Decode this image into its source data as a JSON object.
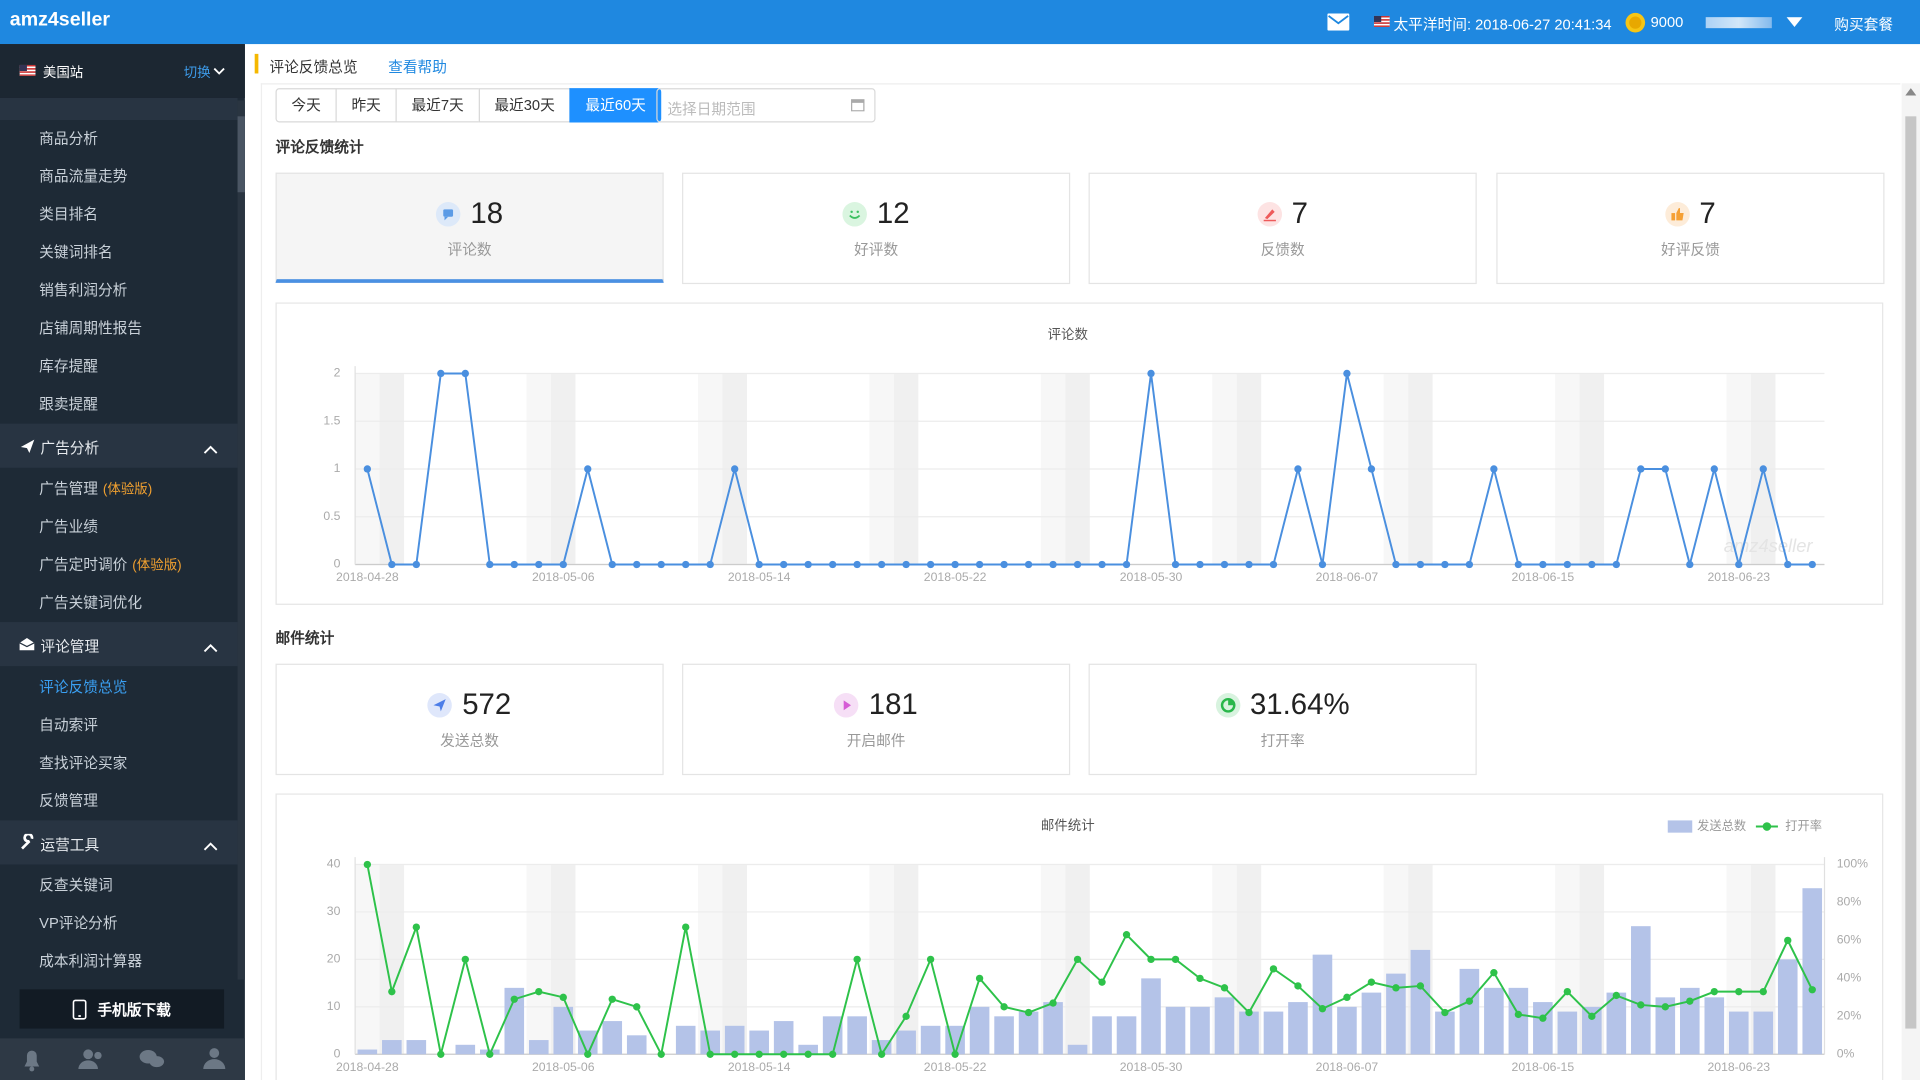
{
  "header": {
    "logo": "amz4seller",
    "time": "太平洋时间: 2018-06-27 20:41:34",
    "coins": 9000,
    "buy": "购买套餐"
  },
  "sidebar": {
    "site": "美国站",
    "switch": "切换",
    "groups": [
      {
        "items": [
          "商品分析",
          "商品流量走势",
          "类目排名",
          "关键词排名",
          "销售利润分析",
          "店铺周期性报告",
          "库存提醒",
          "跟卖提醒"
        ]
      },
      {
        "title": "广告分析",
        "items": [
          {
            "label": "广告管理",
            "tag": "(体验版)"
          },
          "广告业绩",
          {
            "label": "广告定时调价",
            "tag": "(体验版)"
          },
          "广告关键词优化"
        ]
      },
      {
        "title": "评论管理",
        "items": [
          "评论反馈总览",
          "自动索评",
          "查找评论买家",
          "反馈管理"
        ]
      },
      {
        "title": "运营工具",
        "items": [
          "反查关键词",
          "VP评论分析",
          "成本利润计算器"
        ]
      }
    ],
    "mobile": "手机版下载"
  },
  "breadcrumb": {
    "title": "评论反馈总览",
    "help": "查看帮助"
  },
  "filters": {
    "ranges": [
      "今天",
      "昨天",
      "最近7天",
      "最近30天",
      "最近60天"
    ],
    "date_placeholder": "选择日期范围"
  },
  "review_stats": {
    "title": "评论反馈统计",
    "cards": [
      {
        "value": 18,
        "label": "评论数"
      },
      {
        "value": 12,
        "label": "好评数"
      },
      {
        "value": 7,
        "label": "反馈数"
      },
      {
        "value": 7,
        "label": "好评反馈"
      }
    ]
  },
  "mail_stats": {
    "title": "邮件统计",
    "cards": [
      {
        "value": 572,
        "label": "发送总数"
      },
      {
        "value": 181,
        "label": "开启邮件"
      },
      {
        "value": "31.64%",
        "label": "打开率"
      }
    ]
  },
  "chart_data": [
    {
      "type": "line",
      "title": "评论数",
      "watermark": "amz4seller",
      "color": "#4a8fdf",
      "grid": true,
      "categories": [
        "2018-04-28",
        null,
        null,
        null,
        null,
        null,
        null,
        null,
        "2018-05-06",
        null,
        null,
        null,
        null,
        null,
        null,
        null,
        "2018-05-14",
        null,
        null,
        null,
        null,
        null,
        null,
        null,
        "2018-05-22",
        null,
        null,
        null,
        null,
        null,
        null,
        null,
        "2018-05-30",
        null,
        null,
        null,
        null,
        null,
        null,
        null,
        "2018-06-07",
        null,
        null,
        null,
        null,
        null,
        null,
        null,
        "2018-06-15",
        null,
        null,
        null,
        null,
        null,
        null,
        null,
        "2018-06-23",
        null,
        null,
        null
      ],
      "values": [
        1,
        0,
        0,
        2,
        2,
        0,
        0,
        0,
        0,
        1,
        0,
        0,
        0,
        0,
        0,
        1,
        0,
        0,
        0,
        0,
        0,
        0,
        0,
        0,
        0,
        0,
        0,
        0,
        0,
        0,
        0,
        0,
        2,
        0,
        0,
        0,
        0,
        0,
        1,
        0,
        2,
        1,
        0,
        0,
        0,
        0,
        1,
        0,
        0,
        0,
        0,
        0,
        1,
        1,
        0,
        1,
        0,
        1,
        0,
        0
      ],
      "ylim": [
        0,
        2
      ],
      "yticks": [
        0,
        0.5,
        1,
        1.5,
        2
      ]
    },
    {
      "type": "bar",
      "title": "邮件统计",
      "grid": true,
      "legend": "top-right",
      "categories": [
        "2018-04-28",
        null,
        null,
        null,
        null,
        null,
        null,
        null,
        "2018-05-06",
        null,
        null,
        null,
        null,
        null,
        null,
        null,
        "2018-05-14",
        null,
        null,
        null,
        null,
        null,
        null,
        null,
        "2018-05-22",
        null,
        null,
        null,
        null,
        null,
        null,
        null,
        "2018-05-30",
        null,
        null,
        null,
        null,
        null,
        null,
        null,
        "2018-06-07",
        null,
        null,
        null,
        null,
        null,
        null,
        null,
        "2018-06-15",
        null,
        null,
        null,
        null,
        null,
        null,
        null,
        "2018-06-23",
        null,
        null,
        null
      ],
      "series": [
        {
          "name": "发送总数",
          "color": "#b4c3e8",
          "values": [
            1,
            3,
            3,
            0,
            2,
            1,
            14,
            3,
            10,
            5,
            7,
            4,
            0,
            6,
            5,
            6,
            5,
            7,
            2,
            8,
            8,
            3,
            5,
            6,
            6,
            10,
            8,
            9,
            11,
            2,
            8,
            8,
            16,
            10,
            10,
            12,
            9,
            9,
            11,
            21,
            10,
            13,
            17,
            22,
            9,
            18,
            14,
            14,
            11,
            9,
            10,
            13,
            27,
            12,
            14,
            12,
            9,
            9,
            20,
            35
          ]
        },
        {
          "name": "打开率",
          "type": "line",
          "axis": "y2",
          "color": "#2ec24a",
          "values": [
            100,
            33,
            67,
            0,
            50,
            0,
            29,
            33,
            30,
            0,
            29,
            25,
            0,
            67,
            0,
            0,
            0,
            0,
            0,
            0,
            50,
            0,
            20,
            50,
            0,
            40,
            25,
            22,
            27,
            50,
            38,
            63,
            50,
            50,
            40,
            35,
            22,
            45,
            36,
            24,
            30,
            38,
            35,
            36,
            22,
            28,
            43,
            21,
            19,
            33,
            20,
            31,
            26,
            25,
            28,
            33,
            33,
            33,
            60,
            34
          ]
        }
      ],
      "ylim": [
        0,
        40
      ],
      "yticks": [
        0,
        10,
        20,
        30,
        40
      ],
      "y2lim": [
        0,
        100
      ],
      "y2ticks": [
        {
          "value": 0,
          "label": "0%"
        },
        {
          "value": 20,
          "label": "20%"
        },
        {
          "value": 40,
          "label": "40%"
        },
        {
          "value": 60,
          "label": "60%"
        },
        {
          "value": 80,
          "label": "80%"
        },
        {
          "value": 100,
          "label": "100%"
        }
      ]
    }
  ]
}
